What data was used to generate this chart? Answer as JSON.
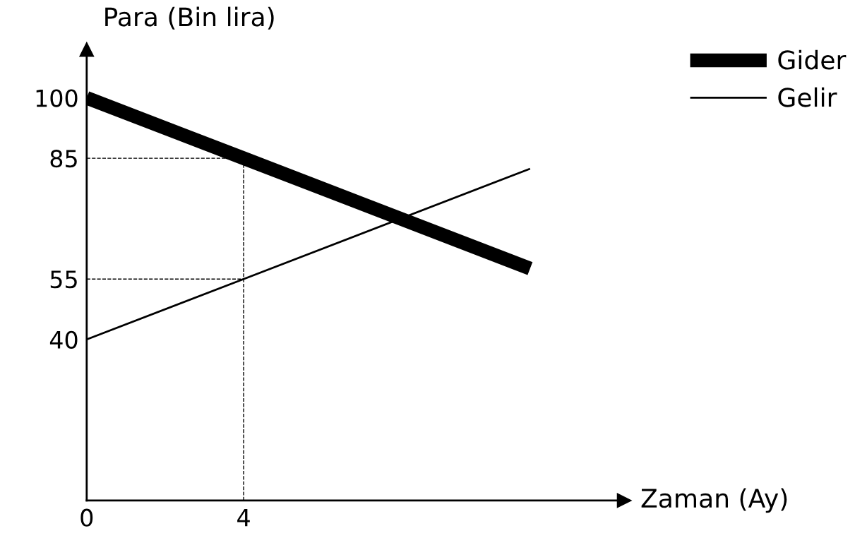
{
  "chart_data": {
    "type": "line",
    "xlabel": "Zaman (Ay)",
    "ylabel": "Para (Bin lira)",
    "x": [
      0,
      4,
      11.3
    ],
    "series": [
      {
        "name": "Gider",
        "color": "#000000",
        "values": [
          100,
          85,
          57.6
        ]
      },
      {
        "name": "Gelir",
        "color": "#000000",
        "values": [
          40,
          55,
          82.4
        ]
      }
    ],
    "xlim": [
      0,
      13.7
    ],
    "ylim": [
      0,
      112
    ],
    "xticks": [
      0,
      4
    ],
    "yticks": [
      40,
      55,
      85,
      100
    ],
    "ref_lines": [
      {
        "axis": "x",
        "value": 4,
        "line_style": "dashed"
      },
      {
        "axis": "y",
        "value": 85,
        "line_style": "dashed"
      },
      {
        "axis": "y",
        "value": 55,
        "line_style": "dashed"
      }
    ],
    "grid": false,
    "legend": "top right",
    "marker": "none",
    "line_style": "solid"
  }
}
